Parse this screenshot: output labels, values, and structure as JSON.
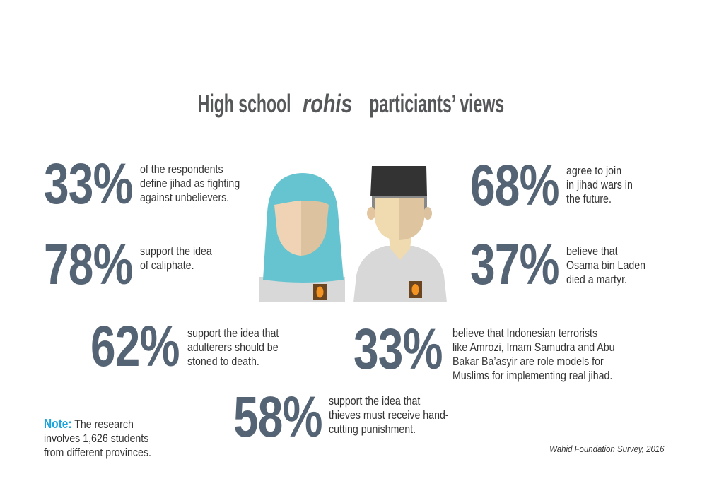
{
  "title": {
    "before": "High school ",
    "italic": "rohis",
    "after": " particiants’ views"
  },
  "stats": [
    {
      "percent": "33%",
      "lines": [
        "of the respondents",
        "define jihad as fighting",
        "against unbelievers."
      ]
    },
    {
      "percent": "78%",
      "lines": [
        "support the idea",
        "of caliphate."
      ]
    },
    {
      "percent": "62%",
      "lines": [
        "support the idea that",
        "adulterers should be",
        "stoned to death."
      ]
    },
    {
      "percent": "68%",
      "lines": [
        "agree to join",
        "in jihad wars in",
        "the future."
      ]
    },
    {
      "percent": "37%",
      "lines": [
        "believe that",
        "Osama bin Laden",
        "died a martyr."
      ]
    },
    {
      "percent": "33%",
      "lines": [
        "believe that Indonesian terrorists",
        "like Amrozi, Imam Samudra and Abu",
        "Bakar Ba’asyir are role models for",
        "Muslims for implementing real jihad."
      ]
    },
    {
      "percent": "58%",
      "lines": [
        "support the idea that",
        "thieves must receive hand-",
        "cutting punishment."
      ]
    }
  ],
  "note": {
    "label": "Note:",
    "lines": [
      " The research",
      "involves 1,626 students",
      "from different provinces."
    ]
  },
  "source": "Wahid Foundation Survey, 2016",
  "colors": {
    "percent": "#556475",
    "note_label": "#1aa3dd",
    "hijab": "#65c4d0",
    "cap": "#333333",
    "uniform": "#d8d8d8",
    "badge": "#6b4420",
    "badge_oval": "#f39321"
  },
  "illustration": {
    "figures": [
      "female-student-icon",
      "male-student-icon"
    ]
  }
}
